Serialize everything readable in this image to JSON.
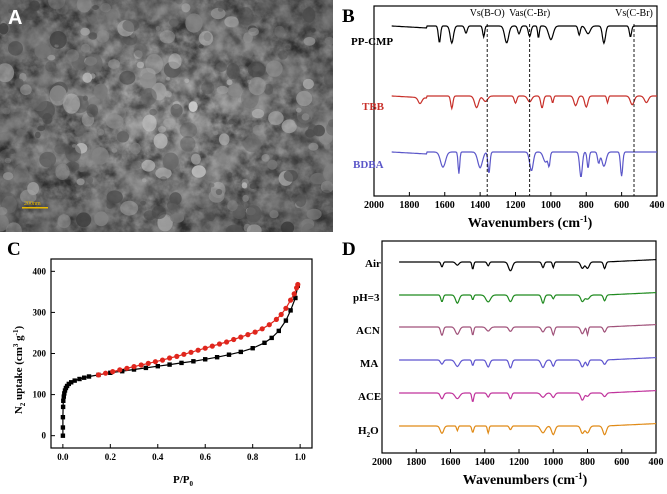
{
  "figure": {
    "panel_a": {
      "letter": "A",
      "scale_bar_label": "200nm"
    },
    "panel_b": {
      "letter": "B",
      "xlabel_main": "Wavenumbers (cm",
      "xlabel_sup": "-1",
      "xlabel_tail": ")",
      "xticks": [
        "2000",
        "1800",
        "1600",
        "1400",
        "1200",
        "1000",
        "800",
        "600",
        "400"
      ],
      "annotations": [
        "Vs(B-O)",
        "Vas(C-Br)",
        "Vs(C-Br)"
      ],
      "series_labels": [
        "PP-CMP",
        "TBB",
        "BDBA"
      ]
    },
    "panel_c": {
      "letter": "C",
      "ylabel": "N2 uptake (cm3 g-1)",
      "xlabel": "P/P0",
      "xticks": [
        "0.0",
        "0.2",
        "0.4",
        "0.6",
        "0.8",
        "1.0"
      ],
      "yticks": [
        "0",
        "100",
        "200",
        "300",
        "400"
      ]
    },
    "panel_d": {
      "letter": "D",
      "xlabel_main": "Wavenumbers (cm",
      "xlabel_sup": "-1",
      "xlabel_tail": ")",
      "xticks": [
        "2000",
        "1800",
        "1600",
        "1400",
        "1200",
        "1000",
        "800",
        "600",
        "400"
      ],
      "series_labels": [
        "Air",
        "pH=3",
        "ACN",
        "MA",
        "ACE",
        "H2O"
      ]
    }
  },
  "colors": {
    "pp_cmp": "#000000",
    "tbb": "#c8302a",
    "bdba": "#5b57c9",
    "adsorption": "#000000",
    "desorption": "#e0261d",
    "air": "#000000",
    "ph3": "#1f8a1f",
    "acn": "#a0527a",
    "ma": "#5e55cf",
    "ace": "#c0339c",
    "h2o": "#e08a16"
  },
  "chart_data": [
    {
      "panel": "B",
      "type": "line",
      "xlabel": "Wavenumbers (cm-1)",
      "ylabel": "",
      "xlim": [
        2000,
        400
      ],
      "x_reversed": true,
      "reference_lines": [
        {
          "label": "Vs(B-O)",
          "x": 1360
        },
        {
          "label": "Vas(C-Br)",
          "x": 1120
        },
        {
          "label": "Vs(C-Br)",
          "x": 530
        }
      ],
      "series": [
        {
          "name": "PP-CMP",
          "peaks": [
            1630,
            1560,
            1480,
            1380,
            1250,
            1180,
            1120,
            1070,
            1000,
            840,
            790,
            700,
            550
          ]
        },
        {
          "name": "TBB",
          "peaks": [
            1740,
            1560,
            1420,
            1370,
            1200,
            1120,
            1050,
            990,
            860,
            800,
            680,
            540,
            460
          ]
        },
        {
          "name": "BDBA",
          "peaks": [
            1610,
            1520,
            1400,
            1350,
            1110,
            1030,
            1010,
            830,
            790,
            730,
            700,
            600
          ]
        }
      ]
    },
    {
      "panel": "C",
      "type": "line",
      "xlabel": "P/P0",
      "ylabel": "N2 uptake (cm3 g-1)",
      "xlim": [
        -0.05,
        1.05
      ],
      "ylim": [
        -30,
        430
      ],
      "series": [
        {
          "name": "adsorption",
          "x": [
            0.0,
            0.0,
            0.0,
            0.001,
            0.002,
            0.004,
            0.006,
            0.009,
            0.013,
            0.018,
            0.025,
            0.035,
            0.05,
            0.07,
            0.09,
            0.11,
            0.15,
            0.2,
            0.25,
            0.3,
            0.35,
            0.4,
            0.45,
            0.5,
            0.55,
            0.6,
            0.65,
            0.7,
            0.75,
            0.8,
            0.85,
            0.88,
            0.91,
            0.94,
            0.96,
            0.98,
            0.99
          ],
          "y": [
            0,
            20,
            45,
            70,
            85,
            95,
            103,
            110,
            116,
            121,
            126,
            130,
            134,
            138,
            141,
            144,
            148,
            153,
            157,
            161,
            165,
            169,
            173,
            177,
            181,
            186,
            191,
            197,
            204,
            213,
            226,
            238,
            255,
            280,
            305,
            335,
            365
          ]
        },
        {
          "name": "desorption",
          "x": [
            0.99,
            0.985,
            0.975,
            0.96,
            0.94,
            0.92,
            0.9,
            0.87,
            0.84,
            0.81,
            0.78,
            0.75,
            0.72,
            0.69,
            0.66,
            0.63,
            0.6,
            0.57,
            0.54,
            0.51,
            0.48,
            0.45,
            0.42,
            0.39,
            0.36,
            0.33,
            0.3,
            0.27,
            0.24,
            0.21,
            0.18,
            0.15
          ],
          "y": [
            368,
            360,
            345,
            330,
            310,
            295,
            283,
            270,
            260,
            252,
            246,
            240,
            234,
            228,
            223,
            218,
            213,
            208,
            203,
            198,
            193,
            189,
            184,
            180,
            176,
            172,
            168,
            164,
            160,
            156,
            152,
            148
          ]
        }
      ]
    },
    {
      "panel": "D",
      "type": "line",
      "xlabel": "Wavenumbers (cm-1)",
      "ylabel": "",
      "xlim": [
        2000,
        400
      ],
      "x_reversed": true,
      "series": [
        {
          "name": "Air",
          "peaks": [
            1650,
            1560,
            1470,
            1380,
            1250,
            1060,
            1000,
            830,
            800,
            700
          ]
        },
        {
          "name": "pH=3",
          "peaks": [
            1650,
            1560,
            1470,
            1380,
            1250,
            1060,
            1000,
            830,
            800,
            700
          ]
        },
        {
          "name": "ACN",
          "peaks": [
            1650,
            1560,
            1470,
            1380,
            1250,
            1060,
            1000,
            830,
            800,
            700
          ]
        },
        {
          "name": "MA",
          "peaks": [
            1650,
            1560,
            1470,
            1380,
            1250,
            1060,
            1000,
            830,
            800,
            700
          ]
        },
        {
          "name": "ACE",
          "peaks": [
            1650,
            1560,
            1470,
            1380,
            1250,
            1060,
            1000,
            830,
            800,
            700
          ]
        },
        {
          "name": "H2O",
          "peaks": [
            1650,
            1560,
            1470,
            1380,
            1250,
            1060,
            1000,
            830,
            800,
            700
          ]
        }
      ]
    }
  ]
}
